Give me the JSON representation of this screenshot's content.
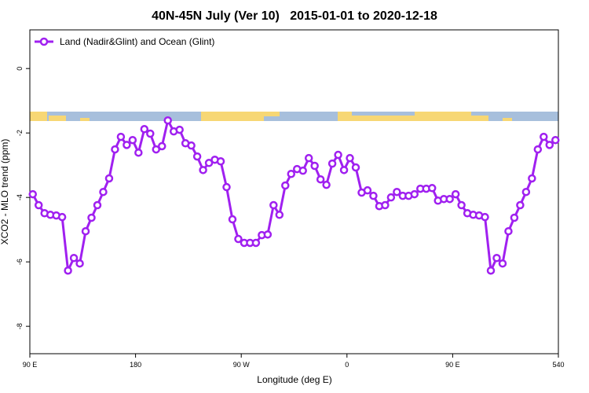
{
  "chart_data": {
    "type": "line",
    "title": "40N-45N July (Ver 10)   2015-01-01 to 2020-12-18",
    "x_label": "Longitude (deg E)",
    "y_label": "XCO2 - MLO trend (ppm)",
    "xlim": [
      90,
      540
    ],
    "ylim": [
      -8.85,
      1.2
    ],
    "xticks": [
      {
        "value": 90,
        "label": "90 E"
      },
      180,
      {
        "value": 270,
        "label": "90 W"
      },
      {
        "value": 360,
        "label": "0"
      },
      {
        "value": 450,
        "label": "90 E"
      },
      540
    ],
    "yticks": [
      0,
      -2,
      -4,
      -6,
      -8
    ],
    "legend": "top-left",
    "x": [
      92.5,
      97.5,
      102.5,
      107.5,
      112.5,
      117.5,
      122.5,
      127.5,
      132.5,
      137.5,
      142.5,
      147.5,
      152.5,
      157.5,
      162.5,
      167.5,
      172.5,
      177.5,
      182.5,
      187.5,
      192.5,
      197.5,
      202.5,
      207.5,
      212.5,
      217.5,
      222.5,
      227.5,
      232.5,
      237.5,
      242.5,
      247.5,
      252.5,
      257.5,
      262.5,
      267.5,
      272.5,
      277.5,
      282.5,
      287.5,
      292.5,
      297.5,
      302.5,
      307.5,
      312.5,
      317.5,
      322.5,
      327.5,
      332.5,
      337.5,
      342.5,
      347.5,
      352.5,
      357.5,
      362.5,
      367.5,
      372.5,
      377.5,
      382.5,
      387.5,
      392.5,
      397.5,
      402.5,
      407.5,
      412.5,
      417.5,
      422.5,
      427.5,
      432.5,
      437.5,
      442.5,
      447.5,
      452.5,
      457.5,
      462.5,
      467.5,
      472.5,
      477.5,
      482.5,
      487.5,
      492.5,
      497.5,
      502.5,
      507.5,
      512.5,
      517.5,
      522.5,
      527.5,
      532.5,
      537.5
    ],
    "series": [
      {
        "name": "Land (Nadir&Glint) and Ocean (Glint)",
        "color": "#a020f0",
        "values": [
          -3.9,
          -4.24,
          -4.49,
          -4.54,
          -4.56,
          -4.61,
          -6.27,
          -5.88,
          -6.05,
          -5.05,
          -4.63,
          -4.24,
          -3.83,
          -3.41,
          -2.51,
          -2.12,
          -2.37,
          -2.22,
          -2.61,
          -1.88,
          -2.02,
          -2.51,
          -2.41,
          -1.61,
          -1.95,
          -1.9,
          -2.32,
          -2.39,
          -2.73,
          -3.15,
          -2.93,
          -2.83,
          -2.88,
          -3.68,
          -4.68,
          -5.29,
          -5.41,
          -5.41,
          -5.41,
          -5.17,
          -5.15,
          -4.24,
          -4.54,
          -3.63,
          -3.27,
          -3.12,
          -3.17,
          -2.78,
          -3.02,
          -3.44,
          -3.61,
          -2.95,
          -2.68,
          -3.15,
          -2.78,
          -3.07,
          -3.85,
          -3.78,
          -3.95,
          -4.27,
          -4.24,
          -4.0,
          -3.83,
          -3.95,
          -3.95,
          -3.9,
          -3.73,
          -3.73,
          -3.71,
          -4.1,
          -4.05,
          -4.05,
          -3.9,
          -4.24,
          -4.49,
          -4.54,
          -4.56,
          -4.61,
          -6.27,
          -5.88,
          -6.05,
          -5.05,
          -4.63,
          -4.24,
          -3.83,
          -3.41,
          -2.51,
          -2.12,
          -2.37,
          -2.22
        ]
      }
    ]
  }
}
